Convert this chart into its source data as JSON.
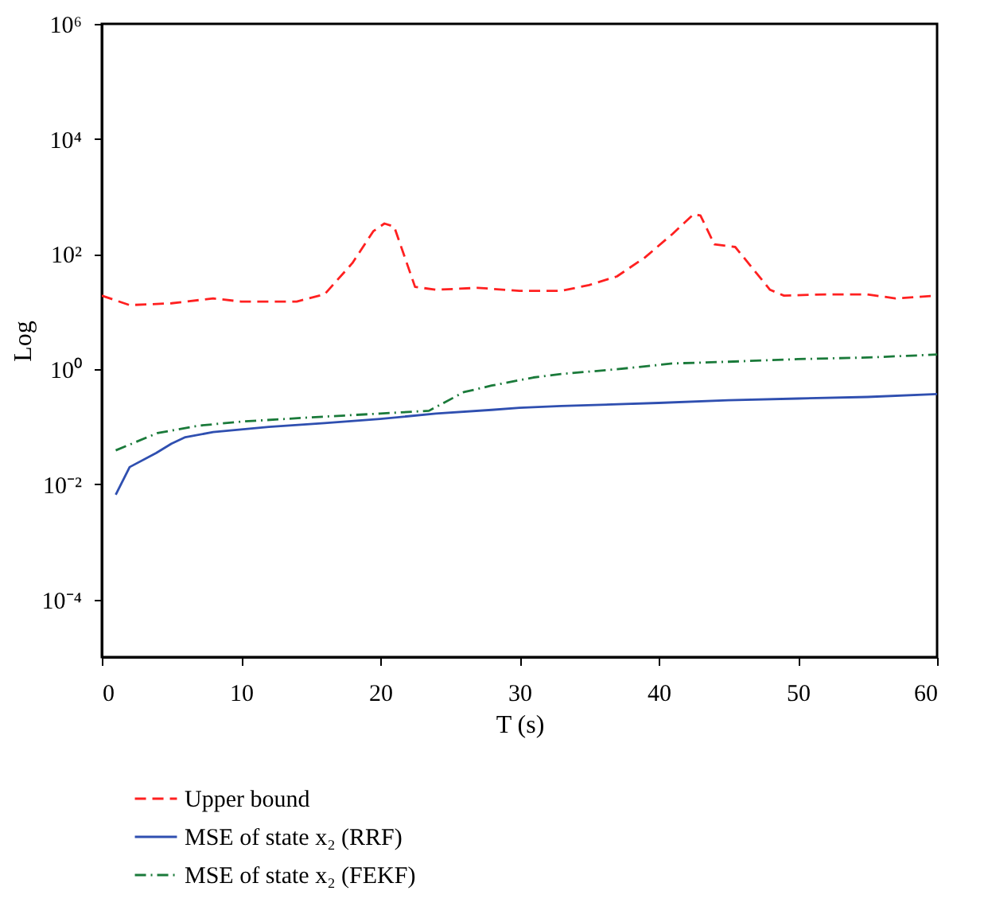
{
  "chart_data": {
    "type": "line",
    "xlabel": "T (s)",
    "ylabel": "Log",
    "xlim": [
      0,
      60
    ],
    "xticks": [
      0,
      10,
      20,
      30,
      40,
      50,
      60
    ],
    "ylim": [
      1e-05,
      1000000
    ],
    "yticks": [
      {
        "value": 0.0001,
        "label": "10⁻⁴"
      },
      {
        "value": 0.01,
        "label": "10⁻²"
      },
      {
        "value": 1,
        "label": "10⁰"
      },
      {
        "value": 100,
        "label": "10²"
      },
      {
        "value": 10000,
        "label": "10⁴"
      },
      {
        "value": 1000000,
        "label": "10⁶"
      }
    ],
    "log": "y",
    "grid": false,
    "legend": "bottom left",
    "marker": "none",
    "series": [
      {
        "name": "Upper bound",
        "color": "#ff2020",
        "line_style": "dashed",
        "x": [
          0,
          2,
          5,
          8,
          10,
          14,
          16,
          18,
          19.5,
          20.3,
          21,
          22.5,
          24,
          27,
          30,
          33,
          35,
          37,
          39,
          41,
          42.5,
          43,
          44,
          45.5,
          48,
          49,
          52,
          55,
          57,
          60
        ],
        "values": [
          19,
          13,
          14,
          17,
          15,
          15,
          20,
          70,
          250,
          340,
          300,
          27,
          24,
          26,
          23,
          23,
          29,
          41,
          87,
          225,
          490,
          470,
          148,
          133,
          24,
          19,
          20,
          20,
          17,
          19
        ]
      },
      {
        "name": "MSE of state x₂ (RRF)",
        "color": "#2f4fb0",
        "line_style": "solid",
        "x": [
          1,
          2,
          3.9,
          5,
          6,
          8,
          12,
          16,
          20,
          24,
          28,
          30,
          33,
          40,
          45,
          50,
          55,
          60
        ],
        "values": [
          0.0066,
          0.02,
          0.035,
          0.051,
          0.066,
          0.081,
          0.1,
          0.116,
          0.137,
          0.17,
          0.197,
          0.214,
          0.23,
          0.26,
          0.29,
          0.31,
          0.33,
          0.37
        ]
      },
      {
        "name": "MSE of state x₂ (FEKF)",
        "color": "#1a7a3a",
        "line_style": "dashdot",
        "x": [
          1,
          4,
          7,
          10,
          15,
          20,
          23.5,
          26,
          28,
          31,
          33,
          37,
          41,
          45,
          50,
          55,
          60
        ],
        "values": [
          0.039,
          0.078,
          0.105,
          0.123,
          0.146,
          0.17,
          0.19,
          0.4,
          0.52,
          0.72,
          0.83,
          1.0,
          1.26,
          1.35,
          1.5,
          1.6,
          1.8
        ]
      }
    ]
  }
}
